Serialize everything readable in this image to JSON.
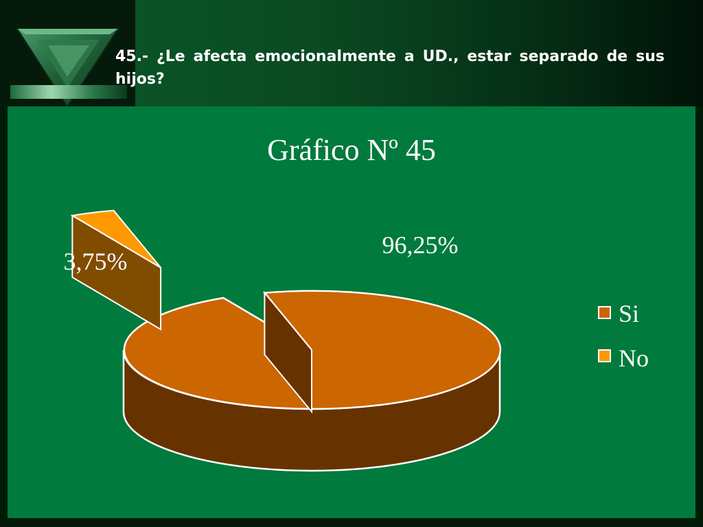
{
  "slide": {
    "title": "45.- ¿Le afecta emocionalmente a UD., estar separado de sus hijos?"
  },
  "colors": {
    "background": "#007a3d",
    "si_top": "#cc6600",
    "si_side": "#663300",
    "no_top": "#ff9900",
    "no_side": "#804c00",
    "outline": "#ffffff"
  },
  "chart_data": {
    "type": "pie",
    "title": "Gráfico Nº 45",
    "three_d": true,
    "exploded_slice": "No",
    "legend_position": "right",
    "slices": [
      {
        "label": "Si",
        "value": 96.25,
        "data_label": "96,25%"
      },
      {
        "label": "No",
        "value": 3.75,
        "data_label": "3,75%"
      }
    ]
  }
}
